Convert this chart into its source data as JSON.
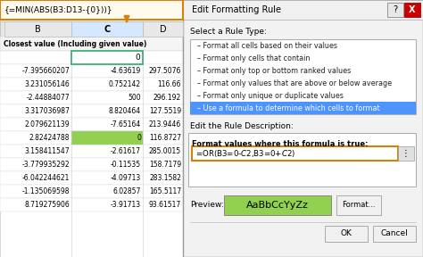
{
  "formula_bar_text": "{=MIN(ABS(B3:D13-{0}))}",
  "col_headers": [
    "B",
    "C",
    "D"
  ],
  "row_label": "Closest value (Including given value)",
  "search_value": "0",
  "table_data": [
    [
      "-7.395660207",
      "-4.63619",
      "297.5076"
    ],
    [
      "3.231056146",
      "0.752142",
      "116.66"
    ],
    [
      "-2.44884077",
      "500",
      "296.192"
    ],
    [
      "3.317036987",
      "8.820464",
      "127.5519"
    ],
    [
      "2.079621139",
      "-7.65164",
      "213.9446"
    ],
    [
      "2.82424788",
      "0",
      "116.8727"
    ],
    [
      "3.158411547",
      "-2.61617",
      "285.0015"
    ],
    [
      "-3.779935292",
      "-0.11535",
      "158.7179"
    ],
    [
      "-6.042244621",
      "-4.09713",
      "283.1582"
    ],
    [
      "-1.135069598",
      "6.02857",
      "165.5117"
    ],
    [
      "8.719275906",
      "-3.91713",
      "93.61517"
    ]
  ],
  "highlighted_row": 5,
  "highlighted_col": 1,
  "dialog_title": "Edit Formatting Rule",
  "rule_types": [
    "Format all cells based on their values",
    "Format only cells that contain",
    "Format only top or bottom ranked values",
    "Format only values that are above or below average",
    "Format only unique or duplicate values",
    "Use a formula to determine which cells to format"
  ],
  "selected_rule": 5,
  "rule_desc_label": "Edit the Rule Description:",
  "formula_label": "Format values where this formula is true:",
  "formula_value": "=OR(B3=0-$C$2,B3=0+$C$2)",
  "preview_label": "Preview:",
  "preview_text": "AaBbCcYyZz",
  "preview_bg": "#92D050",
  "format_btn": "Format...",
  "ok_btn": "OK",
  "cancel_btn": "Cancel",
  "bg_color": "#F0F0F0",
  "dialog_bg": "#F2F2F2",
  "spreadsheet_bg": "#FFFFFF",
  "header_row_bg": "#E8E8E8",
  "col_header_selected_bg": "#D6E8FF",
  "selected_rule_bg": "#4D94FF",
  "selected_rule_fg": "#FFFFFF",
  "formula_bar_bg": "#FFFAEE",
  "formula_bar_border": "#D4820A",
  "arrow_color": "#D4820A",
  "cell_highlight_bg": "#92D050",
  "listbox_bg": "#FFFFFF",
  "formula_input_border": "#D4820A",
  "btn_bg": "#F0F0F0",
  "btn_border": "#AAAAAA",
  "close_btn_bg": "#CC0000",
  "help_btn_bg": "#E8E8E8",
  "row_line_color": "#D0D0D0",
  "col_line_color": "#C0C0C0",
  "label_row_bg": "#F5F5F5"
}
